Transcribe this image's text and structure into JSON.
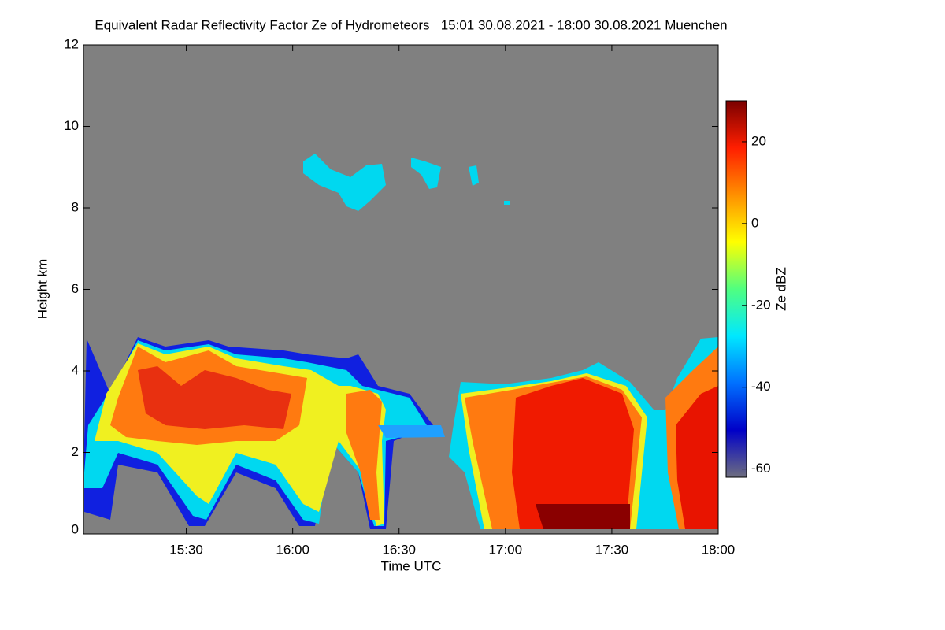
{
  "chart_data": {
    "type": "heatmap",
    "title": "Equivalent Radar Reflectivity Factor Ze of Hydrometeors   15:01 30.08.2021 - 18:00 30.08.2021 Muenchen",
    "xlabel": "Time UTC",
    "ylabel": "Height km",
    "colorbar_label": "Ze dBZ",
    "xlim": [
      901,
      1080
    ],
    "xticks": [
      {
        "value": 930,
        "label": "15:30"
      },
      {
        "value": 960,
        "label": "16:00"
      },
      {
        "value": 990,
        "label": "16:30"
      },
      {
        "value": 1020,
        "label": "17:00"
      },
      {
        "value": 1050,
        "label": "17:30"
      },
      {
        "value": 1080,
        "label": "18:00"
      }
    ],
    "ylim": [
      0,
      12
    ],
    "yticks": [
      0,
      2,
      4,
      6,
      8,
      10,
      12
    ],
    "clim": [
      -62,
      30
    ],
    "cticks": [
      -60,
      -40,
      -20,
      0,
      20
    ],
    "colormap": [
      "#6e6e80",
      "#0000c8",
      "#0070ff",
      "#00e8ff",
      "#50ff80",
      "#ffff00",
      "#ff9000",
      "#ff1e00",
      "#7a0000"
    ],
    "background": "#808080"
  }
}
